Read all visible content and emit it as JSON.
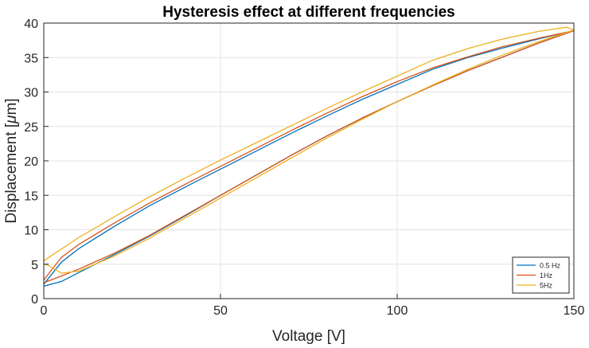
{
  "chart_data": {
    "type": "line",
    "title": "Hysteresis effect at different frequencies",
    "xlabel": "Voltage [V]",
    "ylabel_prefix": "Displacement [",
    "ylabel_mu": "μ",
    "ylabel_suffix": "m]",
    "xlim": [
      0,
      150
    ],
    "ylim": [
      0,
      40
    ],
    "xticks": [
      0,
      50,
      100,
      150
    ],
    "yticks": [
      0,
      5,
      10,
      15,
      20,
      25,
      30,
      35,
      40
    ],
    "grid": true,
    "legend_position": "bottom-right",
    "series": [
      {
        "name": "0.5 Hz",
        "color": "#0072BD",
        "points": [
          [
            0,
            1.8
          ],
          [
            5,
            2.5
          ],
          [
            10,
            3.8
          ],
          [
            20,
            6.4
          ],
          [
            30,
            9.1
          ],
          [
            40,
            12.0
          ],
          [
            50,
            15.0
          ],
          [
            60,
            17.9
          ],
          [
            70,
            20.8
          ],
          [
            80,
            23.6
          ],
          [
            90,
            26.2
          ],
          [
            100,
            28.6
          ],
          [
            110,
            30.9
          ],
          [
            120,
            33.1
          ],
          [
            130,
            35.1
          ],
          [
            140,
            37.1
          ],
          [
            150,
            38.9
          ],
          [
            140,
            37.7
          ],
          [
            130,
            36.4
          ],
          [
            120,
            35.0
          ],
          [
            110,
            33.3
          ],
          [
            100,
            31.1
          ],
          [
            90,
            28.9
          ],
          [
            80,
            26.5
          ],
          [
            70,
            24.0
          ],
          [
            60,
            21.4
          ],
          [
            50,
            18.8
          ],
          [
            40,
            16.2
          ],
          [
            30,
            13.5
          ],
          [
            20,
            10.5
          ],
          [
            10,
            7.3
          ],
          [
            5,
            5.3
          ],
          [
            0,
            2.1
          ]
        ]
      },
      {
        "name": "1Hz",
        "color": "#D95319",
        "points": [
          [
            0,
            2.3
          ],
          [
            5,
            3.3
          ],
          [
            10,
            4.3
          ],
          [
            20,
            6.6
          ],
          [
            30,
            9.2
          ],
          [
            40,
            12.1
          ],
          [
            50,
            15.0
          ],
          [
            60,
            17.9
          ],
          [
            70,
            20.8
          ],
          [
            80,
            23.6
          ],
          [
            90,
            26.2
          ],
          [
            100,
            28.6
          ],
          [
            110,
            30.9
          ],
          [
            120,
            33.1
          ],
          [
            130,
            35.1
          ],
          [
            140,
            37.1
          ],
          [
            150,
            38.9
          ],
          [
            140,
            37.8
          ],
          [
            130,
            36.6
          ],
          [
            120,
            35.1
          ],
          [
            110,
            33.5
          ],
          [
            100,
            31.5
          ],
          [
            90,
            29.3
          ],
          [
            80,
            26.9
          ],
          [
            70,
            24.4
          ],
          [
            60,
            21.8
          ],
          [
            50,
            19.2
          ],
          [
            40,
            16.6
          ],
          [
            30,
            13.9
          ],
          [
            20,
            11.0
          ],
          [
            10,
            7.9
          ],
          [
            5,
            6.0
          ],
          [
            0,
            2.7
          ]
        ]
      },
      {
        "name": "5Hz",
        "color": "#EDB120",
        "points": [
          [
            0,
            5.0
          ],
          [
            1,
            4.9
          ],
          [
            5,
            3.7
          ],
          [
            10,
            4.0
          ],
          [
            20,
            6.2
          ],
          [
            30,
            8.8
          ],
          [
            40,
            11.7
          ],
          [
            50,
            14.6
          ],
          [
            60,
            17.5
          ],
          [
            70,
            20.4
          ],
          [
            80,
            23.3
          ],
          [
            90,
            26.0
          ],
          [
            100,
            28.6
          ],
          [
            110,
            31.0
          ],
          [
            120,
            33.3
          ],
          [
            130,
            35.4
          ],
          [
            140,
            37.3
          ],
          [
            150,
            39.0
          ],
          [
            148,
            39.4
          ],
          [
            140,
            38.8
          ],
          [
            130,
            37.7
          ],
          [
            120,
            36.3
          ],
          [
            110,
            34.6
          ],
          [
            100,
            32.3
          ],
          [
            90,
            30.0
          ],
          [
            80,
            27.6
          ],
          [
            70,
            25.1
          ],
          [
            60,
            22.6
          ],
          [
            50,
            20.1
          ],
          [
            40,
            17.5
          ],
          [
            30,
            14.8
          ],
          [
            20,
            11.9
          ],
          [
            10,
            8.9
          ],
          [
            5,
            7.2
          ],
          [
            0,
            5.5
          ]
        ]
      }
    ]
  }
}
